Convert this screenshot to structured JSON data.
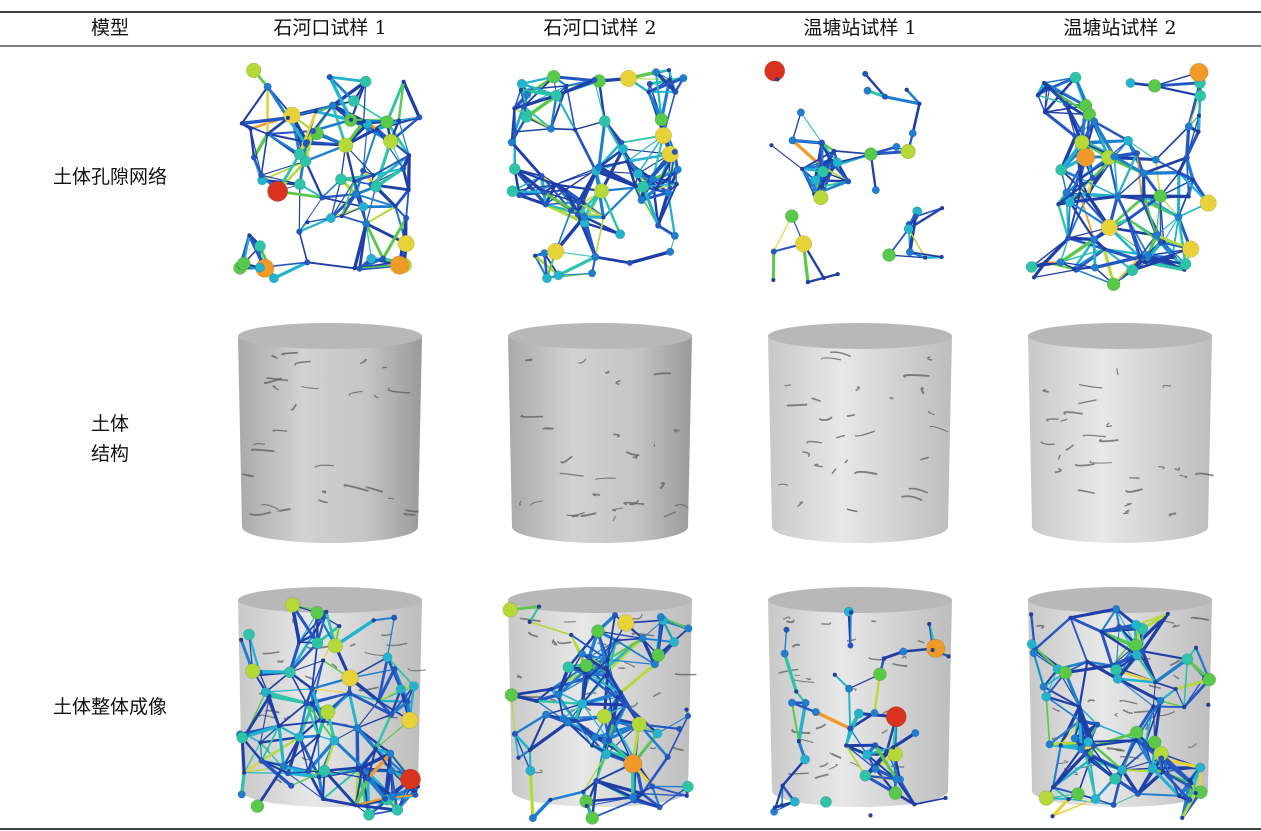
{
  "table": {
    "header": [
      "模型",
      "石河口试样 1",
      "石河口试样 2",
      "温塘站试样 1",
      "温塘站试样 2"
    ],
    "rows": [
      {
        "label": [
          "土体孔隙网络"
        ]
      },
      {
        "label": [
          "土体",
          "结构"
        ]
      },
      {
        "label": [
          "土体整体成像"
        ]
      }
    ]
  }
}
